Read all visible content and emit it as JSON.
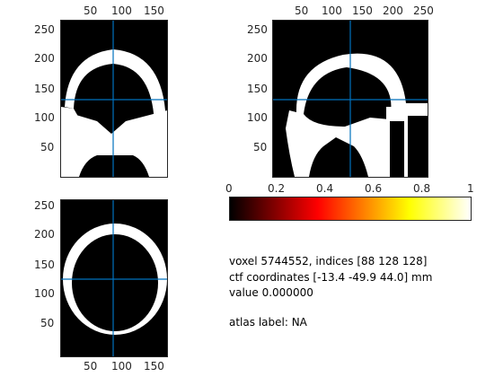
{
  "panels": {
    "coronal": {
      "x_ticks": [
        "50",
        "100",
        "150"
      ],
      "y_ticks": [
        "250",
        "200",
        "150",
        "100",
        "50"
      ]
    },
    "sagittal": {
      "x_ticks": [
        "50",
        "100",
        "150",
        "200",
        "250"
      ],
      "y_ticks": [
        "250",
        "200",
        "150",
        "100",
        "50"
      ]
    },
    "axial": {
      "x_ticks": [
        "50",
        "100",
        "150"
      ],
      "y_ticks": [
        "250",
        "200",
        "150",
        "100",
        "50"
      ]
    }
  },
  "colorbar": {
    "ticks": [
      "0",
      "0.2",
      "0.4",
      "0.6",
      "0.8",
      "1"
    ],
    "colormap": "hot"
  },
  "info": {
    "voxel_line": "voxel 5744552, indices [88 128 128]",
    "ctf_line": "ctf coordinates [-13.4 -49.9 44.0] mm",
    "value_line": "value 0.000000",
    "atlas_line": "atlas label: NA"
  },
  "colors": {
    "crosshair": "#0072bd",
    "tissue": "#ffffff",
    "background": "#000000"
  }
}
